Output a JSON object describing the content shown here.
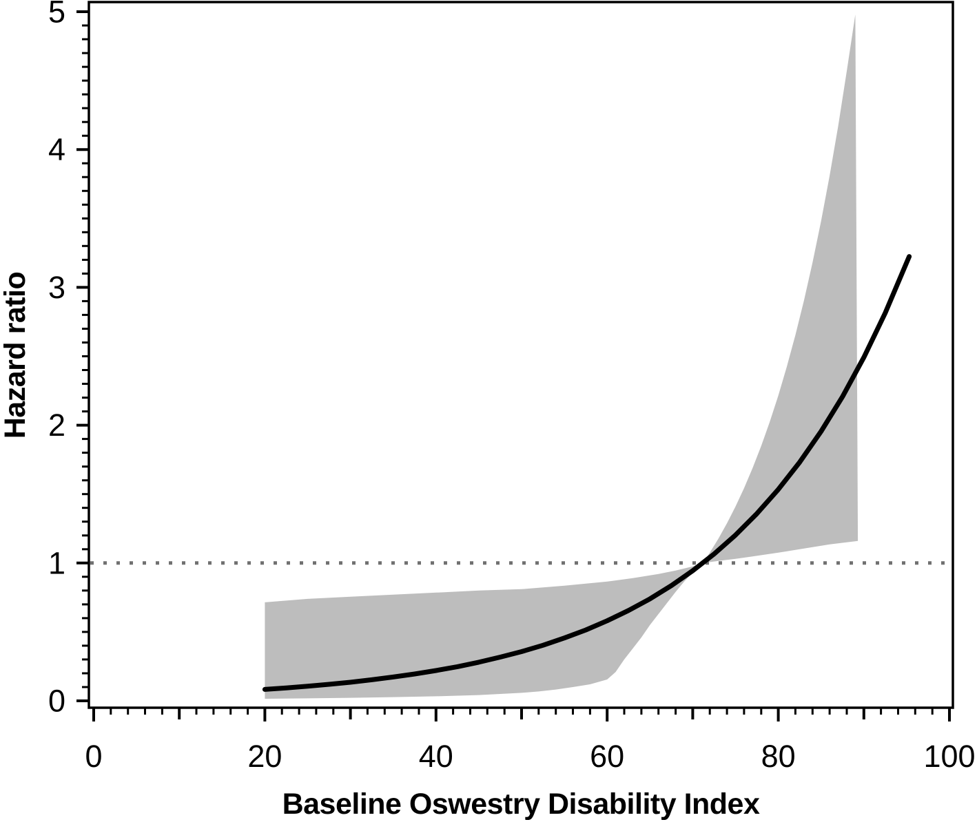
{
  "chart_data": {
    "type": "line",
    "title": "",
    "xlabel": "Baseline Oswestry Disability Index",
    "ylabel": "Hazard ratio",
    "xlim": [
      0,
      100
    ],
    "ylim": [
      0,
      5
    ],
    "grid": false,
    "legend": "none",
    "x_major_ticks": [
      0,
      20,
      40,
      60,
      80,
      100
    ],
    "x_tick_labels": [
      "0",
      "20",
      "40",
      "60",
      "80",
      "100"
    ],
    "x_medium_ticks": [
      10,
      30,
      50,
      70,
      90
    ],
    "x_minor_tick_step": 2,
    "y_major_ticks": [
      0,
      1,
      2,
      3,
      4,
      5
    ],
    "y_tick_labels": [
      "0",
      "1",
      "2",
      "3",
      "4",
      "5"
    ],
    "y_minor_tick_step": 0.1,
    "reference_line": {
      "y": 1,
      "style": "dotted"
    },
    "colors": {
      "curve": "#000000",
      "band": "#bdbdbd",
      "reference": "#707070",
      "axis": "#000000",
      "background": "#ffffff"
    },
    "series": [
      {
        "name": "hazard-ratio-curve",
        "x": [
          20,
          22.5,
          25,
          27.5,
          30,
          32.5,
          35,
          37.5,
          40,
          42.5,
          45,
          47.5,
          50,
          52.5,
          55,
          57.5,
          60,
          62.5,
          65,
          67.5,
          70,
          72.5,
          75,
          77.5,
          80,
          82.5,
          85,
          87.5,
          90,
          92.5,
          95.3
        ],
        "y": [
          0.083,
          0.094,
          0.106,
          0.12,
          0.135,
          0.153,
          0.173,
          0.195,
          0.22,
          0.248,
          0.28,
          0.317,
          0.357,
          0.403,
          0.456,
          0.514,
          0.581,
          0.656,
          0.74,
          0.836,
          0.944,
          1.066,
          1.203,
          1.358,
          1.534,
          1.732,
          1.955,
          2.207,
          2.492,
          2.814,
          3.224
        ]
      }
    ],
    "confidence_band": {
      "name": "95-percent-confidence-band",
      "upper_x": [
        20,
        25,
        30,
        35,
        40,
        45,
        50,
        55,
        60,
        63,
        66,
        68,
        70,
        71.2,
        72,
        73,
        74,
        75,
        76,
        77,
        78,
        79,
        80,
        81,
        82,
        83,
        84,
        85,
        86,
        87,
        88,
        89
      ],
      "upper_y": [
        0.715,
        0.74,
        0.755,
        0.77,
        0.785,
        0.8,
        0.81,
        0.835,
        0.865,
        0.89,
        0.92,
        0.945,
        0.975,
        1.0,
        1.075,
        1.177,
        1.288,
        1.41,
        1.543,
        1.689,
        1.849,
        2.024,
        2.215,
        2.425,
        2.654,
        2.905,
        3.18,
        3.48,
        3.81,
        4.17,
        4.57,
        4.98
      ],
      "lower_x": [
        20,
        25,
        30,
        35,
        40,
        45,
        50,
        52,
        54,
        56,
        58,
        60,
        61,
        62,
        63,
        64,
        65,
        66,
        67,
        68,
        69,
        70,
        71.2,
        73,
        75,
        77,
        80,
        83,
        86,
        89.3
      ],
      "lower_y": [
        0.015,
        0.018,
        0.022,
        0.027,
        0.033,
        0.042,
        0.058,
        0.068,
        0.082,
        0.1,
        0.12,
        0.155,
        0.21,
        0.3,
        0.38,
        0.46,
        0.55,
        0.63,
        0.71,
        0.79,
        0.865,
        0.93,
        1.0,
        1.015,
        1.03,
        1.048,
        1.075,
        1.105,
        1.135,
        1.16
      ]
    }
  }
}
